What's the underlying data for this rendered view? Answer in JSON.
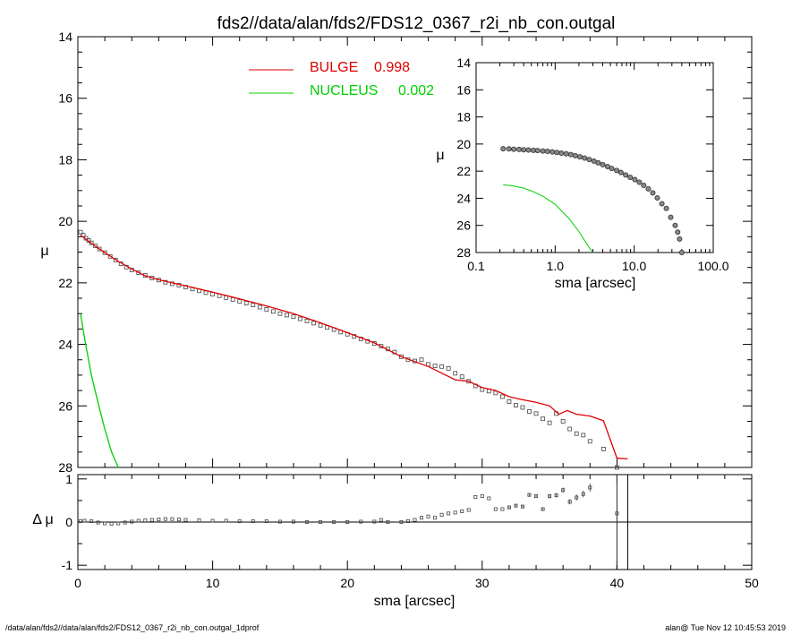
{
  "title": "fds2//data/alan/fds2/FDS12_0367_r2i_nb_con.outgal",
  "footer_left": "/data/alan/fds2//data/alan/fds2/FDS12_0367_r2i_nb_con.outgal_1dprof",
  "footer_right": "alan@  Tue Nov 12 10:45:53 2019",
  "colors": {
    "bulge": "#e00000",
    "nucleus": "#00d000",
    "data": "#444444"
  },
  "chart_data": [
    {
      "type": "scatter",
      "panel": "main",
      "xlabel": "sma [arcsec]",
      "ylabel": "μ",
      "xlim": [
        0,
        50
      ],
      "ylim": [
        28,
        14
      ],
      "y_reversed": true,
      "yticks": [
        14,
        16,
        18,
        20,
        22,
        24,
        26,
        28
      ],
      "ytick_labels": [
        "14",
        "16",
        "18",
        "20",
        "22",
        "24",
        "26",
        "28"
      ],
      "legend": [
        {
          "label": "BULGE",
          "value": "0.998",
          "color": "#e00000"
        },
        {
          "label": "NUCLEUS",
          "value": "0.002",
          "color": "#00d000"
        }
      ],
      "legend_position": "top-center",
      "series": [
        {
          "name": "BULGE",
          "kind": "line",
          "color": "#e00000",
          "x": [
            0.2,
            1,
            2,
            3,
            4,
            5,
            6,
            7,
            8,
            10,
            12,
            14,
            16,
            18,
            20,
            22,
            24,
            26,
            28,
            29,
            30,
            31,
            32,
            33,
            34,
            35,
            35.7,
            36.3,
            37,
            38,
            39,
            40,
            40.8
          ],
          "y": [
            20.45,
            20.72,
            21.02,
            21.3,
            21.55,
            21.77,
            21.9,
            22.0,
            22.1,
            22.3,
            22.52,
            22.75,
            23.0,
            23.3,
            23.62,
            23.95,
            24.4,
            24.72,
            25.15,
            25.2,
            25.4,
            25.5,
            25.7,
            25.8,
            25.88,
            26.0,
            26.27,
            26.15,
            26.27,
            26.33,
            26.48,
            27.7,
            27.72
          ]
        },
        {
          "name": "NUCLEUS",
          "kind": "line",
          "color": "#00d000",
          "x": [
            0.2,
            0.5,
            1.0,
            1.5,
            2.0,
            2.5,
            3.0
          ],
          "y": [
            23.0,
            23.8,
            25.0,
            25.9,
            26.75,
            27.5,
            28.1
          ]
        },
        {
          "name": "",
          "kind": "points",
          "x": [
            0.2,
            0.4,
            0.6,
            0.8,
            1.0,
            1.3,
            1.6,
            2.0,
            2.4,
            2.8,
            3.2,
            3.6,
            4.0,
            4.5,
            5.0,
            5.5,
            6.0,
            6.5,
            7.0,
            7.5,
            8.0,
            8.5,
            9.0,
            9.5,
            10.0,
            10.5,
            11.0,
            11.5,
            12.0,
            12.5,
            13.0,
            13.5,
            14.0,
            14.5,
            15.0,
            15.5,
            16.0,
            16.5,
            17.0,
            17.5,
            18.0,
            18.5,
            19.0,
            19.5,
            20.0,
            20.5,
            21.0,
            21.5,
            22.0,
            22.5,
            23.0,
            23.5,
            24.0,
            24.5,
            25.0,
            25.5,
            26.0,
            26.5,
            27.0,
            27.5,
            28.0,
            28.5,
            29.0,
            29.5,
            30.0,
            30.5,
            31.0,
            31.5,
            32.0,
            32.5,
            33.0,
            33.5,
            34.0,
            34.5,
            35.0,
            35.5,
            36.0,
            36.5,
            37.0,
            37.5,
            38.0,
            39.0,
            40.0
          ],
          "y": [
            20.35,
            20.45,
            20.55,
            20.62,
            20.7,
            20.8,
            20.9,
            21.02,
            21.14,
            21.26,
            21.38,
            21.49,
            21.58,
            21.67,
            21.76,
            21.84,
            21.91,
            21.98,
            22.03,
            22.08,
            22.14,
            22.2,
            22.26,
            22.32,
            22.37,
            22.42,
            22.48,
            22.54,
            22.6,
            22.66,
            22.72,
            22.79,
            22.86,
            22.93,
            23.0,
            23.05,
            23.1,
            23.17,
            23.24,
            23.31,
            23.38,
            23.45,
            23.52,
            23.6,
            23.67,
            23.74,
            23.82,
            23.9,
            23.97,
            24.06,
            24.15,
            24.25,
            24.4,
            24.5,
            24.54,
            24.5,
            24.65,
            24.7,
            24.72,
            24.78,
            24.94,
            25.05,
            25.2,
            25.35,
            25.47,
            25.52,
            25.58,
            25.7,
            25.86,
            25.98,
            26.05,
            26.18,
            26.25,
            26.42,
            26.55,
            26.25,
            26.5,
            26.75,
            26.9,
            26.95,
            27.15,
            27.4,
            28.0
          ]
        }
      ]
    },
    {
      "type": "scatter",
      "panel": "residual",
      "xlabel": "sma [arcsec]",
      "ylabel": "Δ μ",
      "xlim": [
        0,
        50
      ],
      "ylim": [
        -1.1,
        1.1
      ],
      "xticks": [
        0,
        10,
        20,
        30,
        40,
        50
      ],
      "xtick_labels": [
        "0",
        "10",
        "20",
        "30",
        "40",
        "50"
      ],
      "yticks": [
        -1,
        0,
        1
      ],
      "ytick_labels": [
        "-1",
        "0",
        "1"
      ],
      "reference_line": 0,
      "series": [
        {
          "name": "",
          "kind": "points",
          "x": [
            0.2,
            0.5,
            1.0,
            1.5,
            2.0,
            2.5,
            3.0,
            3.5,
            4.0,
            4.5,
            5.0,
            5.5,
            6.0,
            6.5,
            7.0,
            7.5,
            8.0,
            9.0,
            10.0,
            11.0,
            12.0,
            13.0,
            14.0,
            15.0,
            16.0,
            17.0,
            18.0,
            19.0,
            20.0,
            21.0,
            22.0,
            22.5,
            23.0,
            24.0,
            24.5,
            25.0,
            25.5,
            26.0,
            26.5,
            27.0,
            27.5,
            28.0,
            28.5,
            29.0,
            29.5,
            30.0,
            30.5,
            31.0,
            31.5,
            32.0,
            32.5,
            33.0,
            33.5,
            34.0,
            34.5,
            35.0,
            35.5,
            36.0,
            36.5,
            37.0,
            37.5,
            38.0,
            40.0
          ],
          "y": [
            0.02,
            0.03,
            0.02,
            -0.01,
            -0.03,
            -0.04,
            -0.03,
            -0.01,
            0.01,
            0.03,
            0.04,
            0.05,
            0.06,
            0.07,
            0.07,
            0.06,
            0.05,
            0.04,
            0.03,
            0.03,
            0.02,
            0.02,
            0.02,
            0.01,
            0.01,
            0.0,
            0.0,
            0.0,
            0.0,
            0.01,
            0.01,
            0.05,
            0.0,
            0.0,
            0.02,
            0.05,
            0.1,
            0.13,
            0.1,
            0.17,
            0.2,
            0.22,
            0.25,
            0.28,
            0.58,
            0.6,
            0.55,
            0.3,
            0.3,
            0.34,
            0.38,
            0.36,
            0.63,
            0.6,
            0.3,
            0.6,
            0.62,
            0.74,
            0.47,
            0.57,
            0.65,
            0.8,
            0.2
          ],
          "error": [
            0.01,
            0.01,
            0.01,
            0.01,
            0.01,
            0.01,
            0.01,
            0.01,
            0.01,
            0.01,
            0.01,
            0.01,
            0.01,
            0.01,
            0.01,
            0.01,
            0.01,
            0.01,
            0.01,
            0.01,
            0.01,
            0.01,
            0.01,
            0.01,
            0.01,
            0.01,
            0.01,
            0.01,
            0.01,
            0.01,
            0.01,
            0.01,
            0.01,
            0.01,
            0.01,
            0.01,
            0.01,
            0.01,
            0.01,
            0.01,
            0.01,
            0.01,
            0.01,
            0.01,
            0.02,
            0.02,
            0.02,
            0.02,
            0.02,
            0.03,
            0.03,
            0.03,
            0.03,
            0.04,
            0.04,
            0.05,
            0.05,
            0.06,
            0.06,
            0.07,
            0.08,
            0.1,
            1.2
          ]
        }
      ],
      "vertical_lines": [
        40.0,
        40.8
      ]
    },
    {
      "type": "scatter",
      "panel": "inset",
      "xlabel": "sma [arcsec]",
      "ylabel": "μ",
      "x_scale": "log",
      "xlim": [
        0.1,
        100.0
      ],
      "ylim": [
        28,
        14
      ],
      "y_reversed": true,
      "xticks": [
        0.1,
        1.0,
        10.0,
        100.0
      ],
      "xtick_labels": [
        "0.1",
        "1.0",
        "10.0",
        "100.0"
      ],
      "yticks": [
        14,
        16,
        18,
        20,
        22,
        24,
        26,
        28
      ],
      "ytick_labels": [
        "14",
        "16",
        "18",
        "20",
        "22",
        "24",
        "26",
        "28"
      ],
      "series": [
        {
          "name": "",
          "kind": "points",
          "x": [
            0.22,
            0.26,
            0.3,
            0.35,
            0.4,
            0.46,
            0.53,
            0.6,
            0.7,
            0.8,
            0.92,
            1.05,
            1.2,
            1.38,
            1.58,
            1.8,
            2.06,
            2.36,
            2.7,
            3.1,
            3.5,
            4.0,
            4.6,
            5.2,
            6.0,
            6.8,
            7.8,
            8.9,
            10.2,
            11.6,
            13.2,
            15.1,
            17.2,
            19.6,
            22.4,
            25.5,
            29.0,
            33.0,
            35.5,
            37.5,
            40.0
          ],
          "y": [
            20.35,
            20.36,
            20.38,
            20.4,
            20.42,
            20.44,
            20.46,
            20.48,
            20.51,
            20.54,
            20.58,
            20.62,
            20.67,
            20.72,
            20.78,
            20.86,
            20.94,
            21.03,
            21.14,
            21.26,
            21.38,
            21.52,
            21.66,
            21.8,
            21.95,
            22.1,
            22.28,
            22.45,
            22.62,
            22.82,
            23.05,
            23.3,
            23.6,
            23.97,
            24.4,
            24.75,
            25.4,
            26.0,
            26.5,
            27.0,
            28.0
          ]
        },
        {
          "name": "NUCLEUS",
          "kind": "line",
          "color": "#00d000",
          "x": [
            0.22,
            0.3,
            0.4,
            0.5,
            0.7,
            1.0,
            1.5,
            2.0,
            2.5,
            3.0
          ],
          "y": [
            23.0,
            23.1,
            23.25,
            23.45,
            23.85,
            24.45,
            25.5,
            26.45,
            27.35,
            28.1
          ]
        }
      ]
    }
  ]
}
